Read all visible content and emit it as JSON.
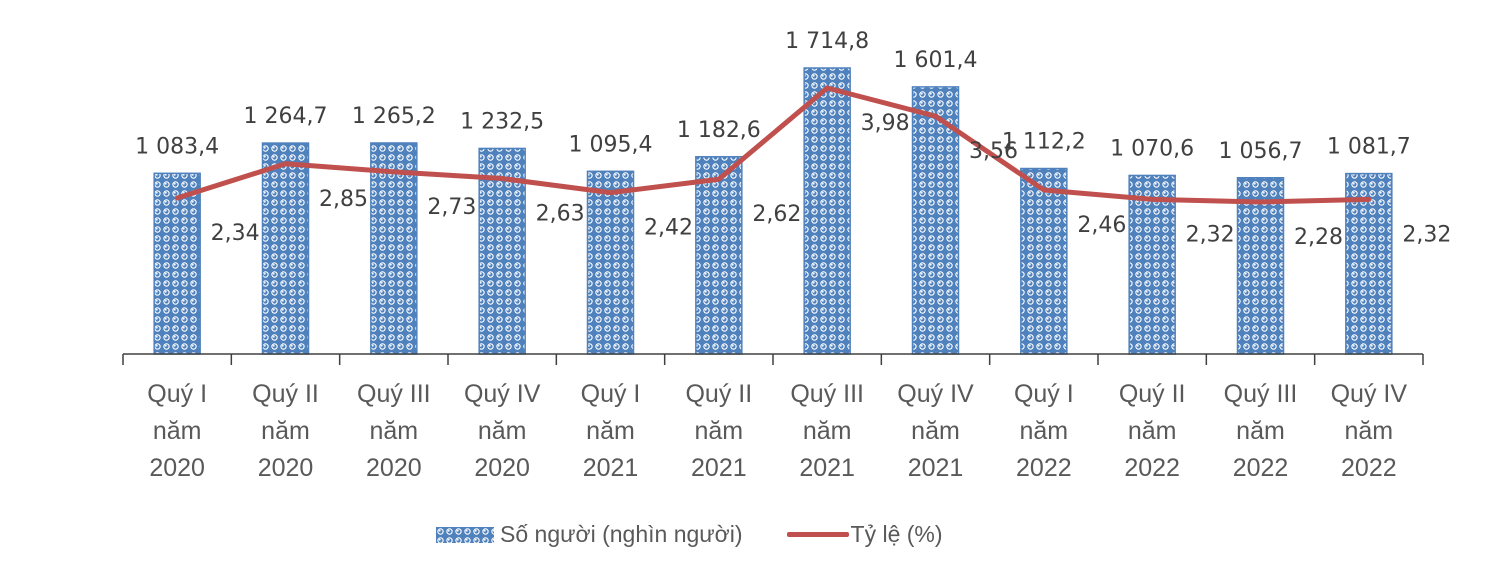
{
  "chart_data": {
    "type": "bar+line",
    "title": "",
    "xlabel": "",
    "ylabel": "",
    "categories": [
      [
        "Quý I",
        "năm",
        "2020"
      ],
      [
        "Quý II",
        "năm",
        "2020"
      ],
      [
        "Quý III",
        "năm",
        "2020"
      ],
      [
        "Quý IV",
        "năm",
        "2020"
      ],
      [
        "Quý I",
        "năm",
        "2021"
      ],
      [
        "Quý II",
        "năm",
        "2021"
      ],
      [
        "Quý III",
        "năm",
        "2021"
      ],
      [
        "Quý IV",
        "năm",
        "2021"
      ],
      [
        "Quý I",
        "năm",
        "2022"
      ],
      [
        "Quý II",
        "năm",
        "2022"
      ],
      [
        "Quý III",
        "năm",
        "2022"
      ],
      [
        "Quý IV",
        "năm",
        "2022"
      ]
    ],
    "series": [
      {
        "name": "Số người (nghìn người)",
        "type": "bar",
        "color": "#4f81bd",
        "pattern": "dotted-circles",
        "values": [
          1083.4,
          1264.7,
          1265.2,
          1232.5,
          1095.4,
          1182.6,
          1714.8,
          1601.4,
          1112.2,
          1070.6,
          1056.7,
          1081.7
        ],
        "labels": [
          "1 083,4",
          "1 264,7",
          "1 265,2",
          "1 232,5",
          "1 095,4",
          "1 182,6",
          "1 714,8",
          "1 601,4",
          "1 112,2",
          "1 070,6",
          "1 056,7",
          "1 081,7"
        ]
      },
      {
        "name": "Tỷ lệ (%)",
        "type": "line",
        "color": "#c0504d",
        "values": [
          2.34,
          2.85,
          2.73,
          2.63,
          2.42,
          2.62,
          3.98,
          3.56,
          2.46,
          2.32,
          2.28,
          2.32
        ],
        "labels": [
          "2,34",
          "2,85",
          "2,73",
          "2,63",
          "2,42",
          "2,62",
          "3,98",
          "3,56",
          "2,46",
          "2,32",
          "2,28",
          "2,32"
        ]
      }
    ],
    "axes": {
      "y_primary_visible": false,
      "y_secondary_visible": false,
      "gridlines": false
    },
    "legend": {
      "position": "bottom"
    }
  },
  "legend": {
    "bar_label": "Số người (nghìn người)",
    "line_label": "Tỷ lệ (%)"
  }
}
